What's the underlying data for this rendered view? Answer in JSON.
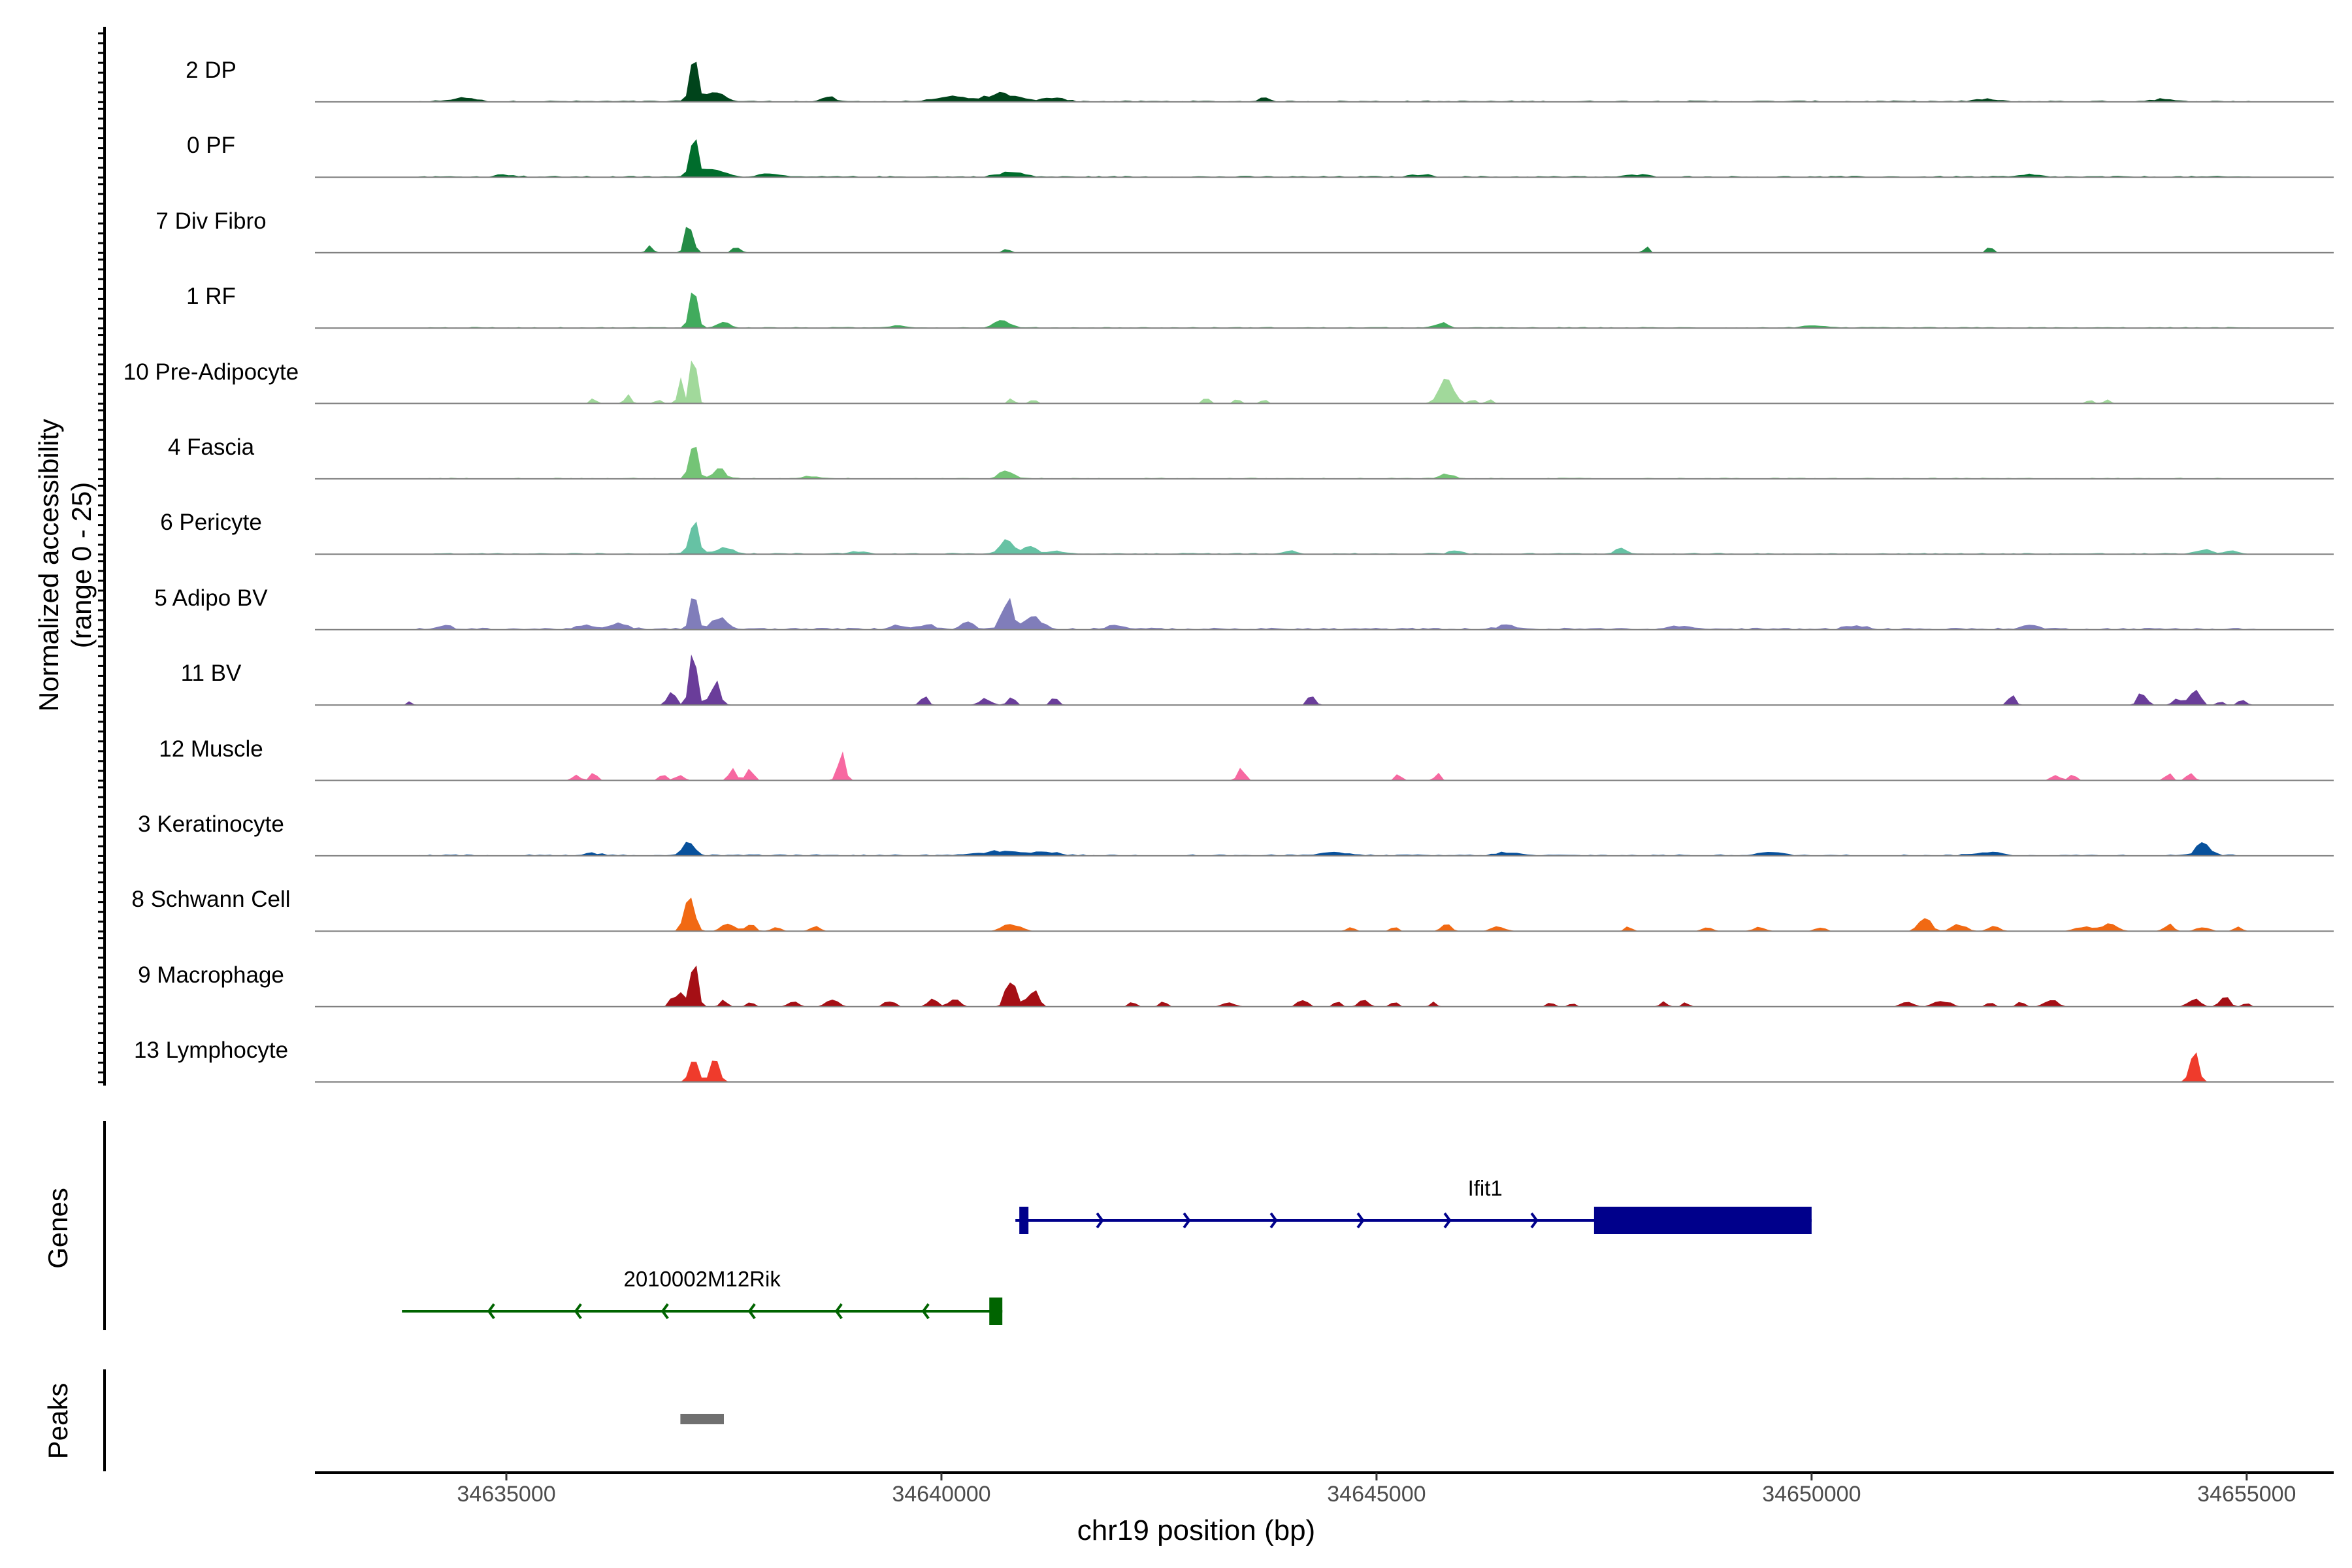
{
  "chart_data": {
    "type": "area",
    "title": "",
    "ylabel_line1": "Normalized accessibility",
    "ylabel_line2": "(range 0 - 25)",
    "y_range": [
      0,
      25
    ],
    "xlabel": "chr19 position (bp)",
    "chrom": "chr19",
    "xlim": [
      34632800,
      34656000
    ],
    "x_ticks": [
      34635000,
      34640000,
      34645000,
      34650000,
      34655000
    ],
    "x_tick_labels": [
      "34635000",
      "34640000",
      "34645000",
      "34650000",
      "34655000"
    ],
    "tracks": [
      {
        "name": "2 DP",
        "color": "#00441b",
        "noise": 0.05,
        "peaks": [
          [
            34637150,
            22,
            60
          ],
          [
            34637400,
            4,
            150
          ],
          [
            34634500,
            1.5,
            200
          ],
          [
            34638700,
            2.5,
            80
          ],
          [
            34640100,
            2,
            250
          ],
          [
            34640700,
            3.5,
            250
          ],
          [
            34641300,
            2,
            150
          ],
          [
            34643700,
            1.5,
            80
          ],
          [
            34652000,
            1,
            150
          ],
          [
            34654000,
            1,
            150
          ]
        ]
      },
      {
        "name": "0 PF",
        "color": "#006d2c",
        "noise": 0.05,
        "peaks": [
          [
            34637150,
            20,
            60
          ],
          [
            34637400,
            4,
            150
          ],
          [
            34638000,
            1.5,
            150
          ],
          [
            34640800,
            2,
            200
          ],
          [
            34635000,
            1,
            150
          ],
          [
            34645500,
            1,
            150
          ],
          [
            34648000,
            1,
            150
          ],
          [
            34652500,
            1,
            150
          ]
        ]
      },
      {
        "name": "7 Div Fibro",
        "color": "#238b45",
        "noise": 0.0,
        "peaks": [
          [
            34637100,
            15,
            60
          ],
          [
            34636650,
            3,
            50
          ],
          [
            34637650,
            3,
            60
          ],
          [
            34640750,
            2,
            60
          ],
          [
            34648100,
            3,
            40
          ],
          [
            34652050,
            3,
            40
          ]
        ]
      },
      {
        "name": "1 RF",
        "color": "#41ab5d",
        "noise": 0.04,
        "peaks": [
          [
            34637150,
            18,
            60
          ],
          [
            34637500,
            3,
            100
          ],
          [
            34640700,
            3,
            120
          ],
          [
            34645750,
            2,
            100
          ],
          [
            34639500,
            1,
            150
          ],
          [
            34650000,
            1,
            150
          ]
        ]
      },
      {
        "name": "10 Pre-Adipocyte",
        "color": "#a1d99b",
        "noise": 0.0,
        "peaks": [
          [
            34637150,
            25,
            50
          ],
          [
            34637000,
            12,
            40
          ],
          [
            34636400,
            4,
            50
          ],
          [
            34636000,
            2,
            50
          ],
          [
            34636750,
            2,
            50
          ],
          [
            34640800,
            2,
            50
          ],
          [
            34641050,
            2,
            50
          ],
          [
            34643050,
            3,
            50
          ],
          [
            34643400,
            2,
            50
          ],
          [
            34643700,
            2,
            50
          ],
          [
            34645800,
            10,
            120
          ],
          [
            34646100,
            2,
            50
          ],
          [
            34646300,
            2,
            50
          ],
          [
            34653200,
            2,
            50
          ],
          [
            34653400,
            2,
            50
          ]
        ]
      },
      {
        "name": "4 Fascia",
        "color": "#74c476",
        "noise": 0.04,
        "peaks": [
          [
            34637150,
            18,
            60
          ],
          [
            34637450,
            4,
            100
          ],
          [
            34640750,
            4,
            100
          ],
          [
            34645800,
            2,
            100
          ],
          [
            34638500,
            1,
            150
          ]
        ]
      },
      {
        "name": "6 Pericyte",
        "color": "#66c2a4",
        "noise": 0.05,
        "peaks": [
          [
            34637150,
            15,
            70
          ],
          [
            34637500,
            3,
            150
          ],
          [
            34640750,
            6,
            100
          ],
          [
            34641000,
            3,
            120
          ],
          [
            34641300,
            1.5,
            100
          ],
          [
            34644000,
            1.5,
            100
          ],
          [
            34645900,
            1.5,
            100
          ],
          [
            34647800,
            2.5,
            80
          ],
          [
            34654500,
            2,
            100
          ],
          [
            34654800,
            1.5,
            100
          ],
          [
            34639000,
            1,
            150
          ]
        ]
      },
      {
        "name": "5 Adipo BV",
        "color": "#807dba",
        "noise": 0.07,
        "peaks": [
          [
            34637150,
            16,
            60
          ],
          [
            34637450,
            5,
            120
          ],
          [
            34636300,
            2,
            150
          ],
          [
            34635900,
            1.5,
            150
          ],
          [
            34634300,
            1.5,
            100
          ],
          [
            34640750,
            14,
            80
          ],
          [
            34641050,
            5,
            150
          ],
          [
            34640300,
            3,
            100
          ],
          [
            34639800,
            2,
            150
          ],
          [
            34639500,
            1.5,
            100
          ],
          [
            34642000,
            1.5,
            150
          ],
          [
            34646500,
            1.5,
            150
          ],
          [
            34648500,
            1.5,
            150
          ],
          [
            34650500,
            1.5,
            150
          ],
          [
            34652500,
            1.5,
            150
          ]
        ]
      },
      {
        "name": "11 BV",
        "color": "#6a3d9a",
        "noise": 0.0,
        "peaks": [
          [
            34637150,
            22,
            60
          ],
          [
            34636900,
            8,
            60
          ],
          [
            34637400,
            10,
            80
          ],
          [
            34633900,
            2,
            30
          ],
          [
            34639800,
            4,
            60
          ],
          [
            34640500,
            3,
            100
          ],
          [
            34640800,
            4,
            60
          ],
          [
            34641300,
            3,
            60
          ],
          [
            34644250,
            4,
            60
          ],
          [
            34652300,
            4,
            60
          ],
          [
            34653800,
            6,
            70
          ],
          [
            34654400,
            8,
            80
          ],
          [
            34654200,
            4,
            60
          ],
          [
            34654950,
            3,
            60
          ],
          [
            34654700,
            2,
            40
          ]
        ]
      },
      {
        "name": "12 Muscle",
        "color": "#f768a1",
        "noise": 0.0,
        "peaks": [
          [
            34635800,
            3,
            60
          ],
          [
            34636000,
            3,
            60
          ],
          [
            34636800,
            3,
            60
          ],
          [
            34637000,
            3,
            60
          ],
          [
            34637600,
            6,
            60
          ],
          [
            34637800,
            6,
            60
          ],
          [
            34638850,
            12,
            60
          ],
          [
            34643450,
            6,
            60
          ],
          [
            34645250,
            3,
            50
          ],
          [
            34645700,
            3,
            50
          ],
          [
            34652800,
            3,
            60
          ],
          [
            34653000,
            3,
            60
          ],
          [
            34654100,
            3,
            60
          ],
          [
            34654350,
            3,
            60
          ]
        ]
      },
      {
        "name": "3 Keratinocyte",
        "color": "#08519c",
        "noise": 0.05,
        "peaks": [
          [
            34637100,
            8,
            80
          ],
          [
            34640700,
            2,
            300
          ],
          [
            34641200,
            1.5,
            200
          ],
          [
            34644500,
            1.5,
            200
          ],
          [
            34646500,
            1.5,
            150
          ],
          [
            34649500,
            1.5,
            200
          ],
          [
            34652000,
            1.5,
            200
          ],
          [
            34654500,
            5,
            120
          ],
          [
            34636000,
            1,
            150
          ]
        ]
      },
      {
        "name": "8 Schwann Cell",
        "color": "#f16913",
        "noise": 0.0,
        "peaks": [
          [
            34637100,
            18,
            80
          ],
          [
            34637550,
            4,
            100
          ],
          [
            34637800,
            3,
            80
          ],
          [
            34638100,
            2,
            80
          ],
          [
            34638550,
            2,
            80
          ],
          [
            34640800,
            3,
            150
          ],
          [
            34644700,
            2,
            60
          ],
          [
            34645200,
            2,
            60
          ],
          [
            34645800,
            3,
            80
          ],
          [
            34646400,
            2,
            120
          ],
          [
            34647900,
            2,
            60
          ],
          [
            34648800,
            2,
            80
          ],
          [
            34649400,
            2,
            100
          ],
          [
            34650100,
            2,
            80
          ],
          [
            34651300,
            6,
            100
          ],
          [
            34651700,
            3,
            120
          ],
          [
            34652100,
            2,
            100
          ],
          [
            34653100,
            2,
            120
          ],
          [
            34653400,
            3,
            150
          ],
          [
            34654100,
            3,
            80
          ],
          [
            34654500,
            2,
            100
          ],
          [
            34654900,
            2,
            60
          ]
        ]
      },
      {
        "name": "9 Macrophage",
        "color": "#a50f15",
        "noise": 0.0,
        "peaks": [
          [
            34637150,
            22,
            60
          ],
          [
            34637000,
            6,
            60
          ],
          [
            34636900,
            4,
            50
          ],
          [
            34637500,
            3,
            60
          ],
          [
            34637800,
            2,
            60
          ],
          [
            34638300,
            3,
            80
          ],
          [
            34638750,
            3,
            100
          ],
          [
            34639400,
            3,
            80
          ],
          [
            34639900,
            3,
            80
          ],
          [
            34640150,
            4,
            80
          ],
          [
            34640800,
            14,
            80
          ],
          [
            34641050,
            8,
            80
          ],
          [
            34642200,
            2,
            60
          ],
          [
            34642550,
            2,
            60
          ],
          [
            34643300,
            2,
            100
          ],
          [
            34644150,
            3,
            80
          ],
          [
            34644550,
            2,
            60
          ],
          [
            34644850,
            3,
            80
          ],
          [
            34645200,
            2,
            60
          ],
          [
            34645650,
            2,
            50
          ],
          [
            34647000,
            2,
            60
          ],
          [
            34647250,
            2,
            40
          ],
          [
            34648300,
            2,
            60
          ],
          [
            34648550,
            2,
            50
          ],
          [
            34651100,
            2,
            100
          ],
          [
            34651500,
            3,
            120
          ],
          [
            34652050,
            2,
            60
          ],
          [
            34652400,
            2,
            60
          ],
          [
            34652750,
            3,
            100
          ],
          [
            34654400,
            3,
            100
          ],
          [
            34654750,
            4,
            80
          ],
          [
            34655000,
            2,
            50
          ]
        ]
      },
      {
        "name": "13 Lymphocyte",
        "color": "#ef3b2c",
        "noise": 0.0,
        "peaks": [
          [
            34637150,
            10,
            70
          ],
          [
            34637400,
            11,
            70
          ],
          [
            34654400,
            12,
            70
          ]
        ]
      }
    ],
    "genes_panel_label": "Genes",
    "genes": [
      {
        "name": "Ifit1",
        "strand": "+",
        "start": 34640850,
        "end": 34650000,
        "cds_start": 34647500,
        "cds_end": 34650000,
        "color": "#00008b",
        "row": 0
      },
      {
        "name": "2010002M12Rik",
        "strand": "-",
        "start": 34633800,
        "end": 34640700,
        "cds_start": 34640550,
        "cds_end": 34640700,
        "color": "#006400",
        "row": 1
      }
    ],
    "peaks_panel_label": "Peaks",
    "peak_regions": [
      [
        34637000,
        34637500
      ]
    ]
  }
}
